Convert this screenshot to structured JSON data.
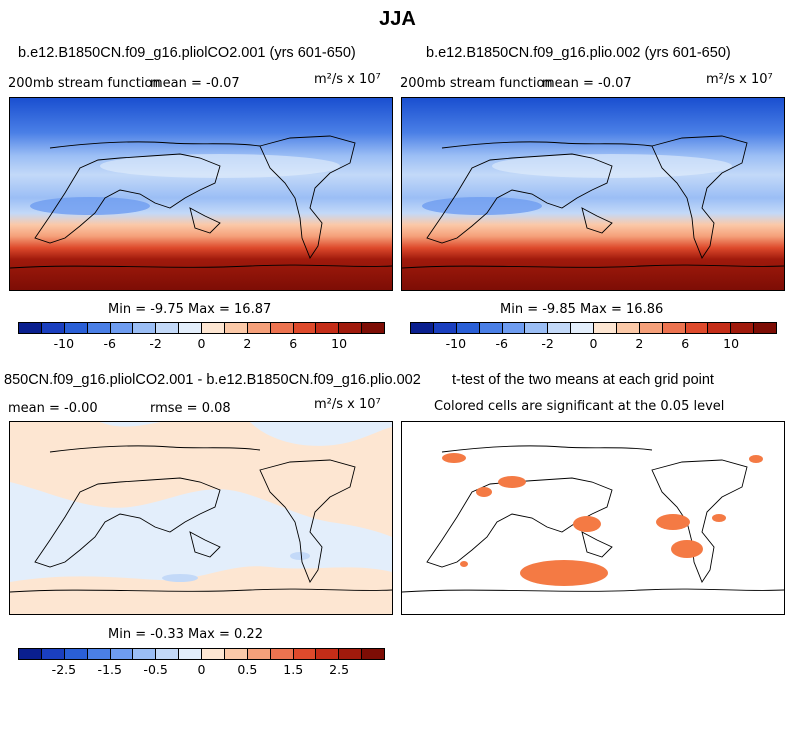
{
  "title": "JJA",
  "panels": {
    "p1": {
      "title": "b.e12.B1850CN.f09_g16.pliolCO2.001 (yrs 601-650)",
      "left_label": "200mb stream function",
      "mean_label": "mean =  -0.07",
      "units": "m²/s x 10⁷",
      "minmax": "Min =  -9.75  Max =  16.87"
    },
    "p2": {
      "title": "b.e12.B1850CN.f09_g16.plio.002 (yrs 601-650)",
      "left_label": "200mb stream function",
      "mean_label": "mean =  -0.07",
      "units": "m²/s x 10⁷",
      "minmax": "Min =  -9.85  Max =  16.86"
    },
    "p3": {
      "title": "850CN.f09_g16.pliolCO2.001 - b.e12.B1850CN.f09_g16.plio.002",
      "mean_label": "mean =  -0.00",
      "rmse_label": "rmse =   0.08",
      "units": "m²/s x 10⁷",
      "minmax": "Min =  -0.33  Max =   0.22"
    },
    "p4": {
      "title": "t-test of the two means at each grid point",
      "subtitle": "Colored cells are significant at the 0.05 level"
    }
  },
  "colorbar_main": {
    "colors": [
      "#0a1f8f",
      "#1a3fbf",
      "#2a5fd6",
      "#4a7fe6",
      "#6e9cf0",
      "#9bbef5",
      "#c3d9f8",
      "#e3eefb",
      "#fde6d2",
      "#fbc9a8",
      "#f5a07a",
      "#ec7350",
      "#de4a2c",
      "#c42d18",
      "#a01a0c",
      "#7d0d05"
    ],
    "tick_labels": [
      "-10",
      "-6",
      "-2",
      "0",
      "2",
      "6",
      "10"
    ]
  },
  "colorbar_diff": {
    "colors": [
      "#0a1f8f",
      "#1a3fbf",
      "#2a5fd6",
      "#4a7fe6",
      "#6e9cf0",
      "#9bbef5",
      "#c3d9f8",
      "#e3eefb",
      "#fde6d2",
      "#fbc9a8",
      "#f5a07a",
      "#ec7350",
      "#de4a2c",
      "#c42d18",
      "#a01a0c",
      "#7d0d05"
    ],
    "tick_labels": [
      "-2.5",
      "-1.5",
      "-0.5",
      "0",
      "0.5",
      "1.5",
      "2.5"
    ]
  },
  "colors": {
    "significant": "#f47a44",
    "coastline": "#000000"
  }
}
